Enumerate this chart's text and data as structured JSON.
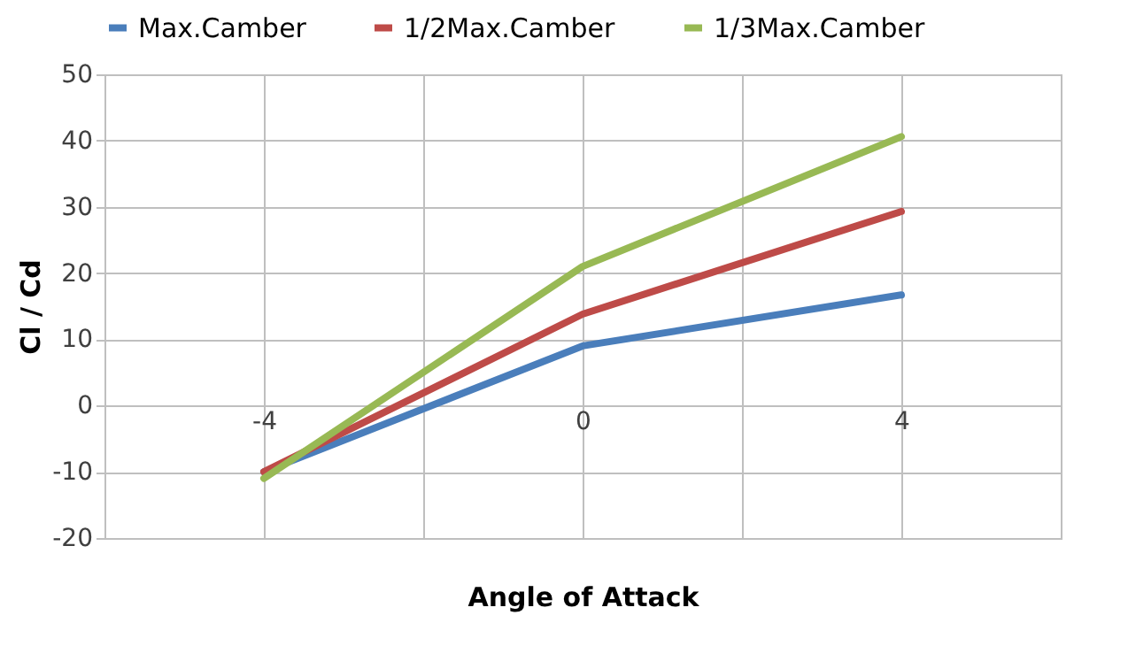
{
  "chart_data": {
    "type": "line",
    "xlabel": "Angle of Attack",
    "ylabel": "Cl / Cd",
    "x": [
      -4,
      0,
      4
    ],
    "xlim": [
      -6,
      6
    ],
    "xticks": [
      {
        "value": -6,
        "label": null
      },
      -4,
      {
        "value": -2,
        "label": null
      },
      0,
      {
        "value": 2,
        "label": null
      },
      4,
      {
        "value": 6,
        "label": null
      }
    ],
    "ylim": [
      -20,
      50
    ],
    "yticks": [
      -20,
      -10,
      0,
      10,
      20,
      30,
      40,
      50
    ],
    "grid": true,
    "legend": "top",
    "line_style": "solid",
    "marker": "none",
    "series": [
      {
        "name": "Max.Camber",
        "color": "#4a7ebb",
        "values": [
          -10,
          9,
          16.7
        ]
      },
      {
        "name": "1/2Max.Camber",
        "color": "#be4b48",
        "values": [
          -10,
          13.8,
          29.3
        ]
      },
      {
        "name": "1/3Max.Camber",
        "color": "#98b954",
        "values": [
          -11,
          21,
          40.6
        ]
      }
    ]
  }
}
